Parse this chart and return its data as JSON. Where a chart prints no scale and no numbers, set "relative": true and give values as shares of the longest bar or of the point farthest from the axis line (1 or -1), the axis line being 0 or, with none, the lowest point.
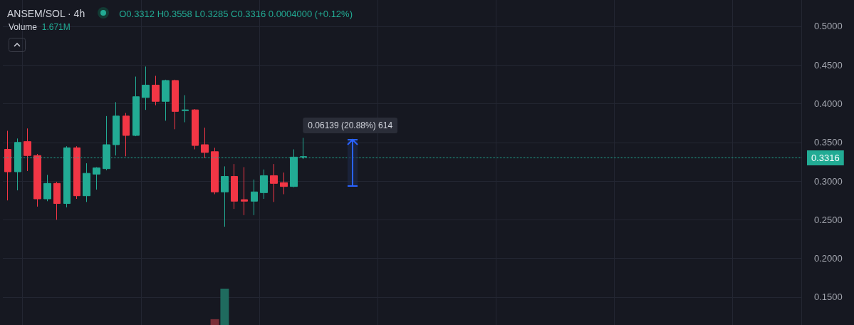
{
  "chart_data": [
    {
      "type": "candlestick",
      "title": "ANSEM/SOL · 4h",
      "subtitle": "O0.3312 H0.3558 L0.3285 C0.3316 0.0004000 (+0.12%)",
      "categories": [
        null,
        null,
        null,
        null,
        null,
        null,
        null,
        null,
        null,
        null,
        null,
        null,
        null,
        null,
        null,
        null,
        null,
        null,
        null,
        null,
        null,
        null,
        null,
        null,
        null,
        null,
        null,
        null,
        null,
        null,
        null,
        null,
        null,
        null,
        null,
        null,
        null,
        null,
        null,
        null,
        null,
        null,
        null,
        null,
        null,
        null,
        null,
        null,
        null,
        null,
        null,
        null,
        null,
        null,
        null,
        null,
        null,
        null,
        null,
        null,
        null,
        null,
        null,
        null,
        null,
        null,
        null,
        null,
        null,
        null,
        null,
        null,
        null,
        null,
        null,
        null,
        null,
        null,
        null,
        null,
        null
      ],
      "ohlc": [
        [
          0.341,
          0.365,
          0.275,
          0.312
        ],
        [
          0.312,
          0.355,
          0.288,
          0.35
        ],
        [
          0.351,
          0.368,
          0.313,
          0.333
        ],
        [
          0.333,
          0.335,
          0.267,
          0.277
        ],
        [
          0.277,
          0.308,
          0.274,
          0.297
        ],
        [
          0.297,
          0.299,
          0.25,
          0.271
        ],
        [
          0.271,
          0.345,
          0.266,
          0.343
        ],
        [
          0.343,
          0.345,
          0.277,
          0.281
        ],
        [
          0.281,
          0.323,
          0.273,
          0.31
        ],
        [
          0.309,
          0.318,
          0.289,
          0.317
        ],
        [
          0.316,
          0.384,
          0.314,
          0.347
        ],
        [
          0.347,
          0.402,
          0.333,
          0.384
        ],
        [
          0.384,
          0.388,
          0.332,
          0.359
        ],
        [
          0.359,
          0.435,
          0.358,
          0.409
        ],
        [
          0.408,
          0.448,
          0.392,
          0.424
        ],
        [
          0.424,
          0.436,
          0.398,
          0.403
        ],
        [
          0.403,
          0.431,
          0.378,
          0.43
        ],
        [
          0.43,
          0.431,
          0.367,
          0.39
        ],
        [
          0.391,
          0.411,
          0.376,
          0.392
        ],
        [
          0.392,
          0.393,
          0.341,
          0.346
        ],
        [
          0.347,
          0.369,
          0.33,
          0.337
        ],
        [
          0.338,
          0.343,
          0.283,
          0.286
        ],
        [
          0.286,
          0.319,
          0.241,
          0.306
        ],
        [
          0.306,
          0.322,
          0.264,
          0.274
        ],
        [
          0.276,
          0.318,
          0.256,
          0.274
        ],
        [
          0.274,
          0.302,
          0.256,
          0.286
        ],
        [
          0.285,
          0.315,
          0.277,
          0.307
        ],
        [
          0.307,
          0.322,
          0.273,
          0.297
        ],
        [
          0.298,
          0.311,
          0.283,
          0.293
        ],
        [
          0.293,
          0.341,
          0.292,
          0.331
        ],
        [
          0.3312,
          0.3558,
          0.3285,
          0.3316
        ],
        null,
        null,
        null,
        null,
        null,
        null,
        null,
        null,
        null,
        null,
        null,
        null,
        null,
        null,
        null,
        null,
        null,
        null,
        null,
        null,
        null,
        null,
        null,
        null,
        null,
        null,
        null,
        null,
        null,
        null,
        null,
        null,
        null,
        null,
        null,
        null,
        null,
        null,
        null,
        null,
        null,
        null,
        null,
        null,
        null,
        null,
        null,
        null,
        null,
        null
      ],
      "colors": [
        "#f23645",
        "#22ab94",
        "#f23645",
        "#f23645",
        "#22ab94",
        "#f23645",
        "#22ab94",
        "#f23645",
        "#22ab94",
        "#22ab94",
        "#22ab94",
        "#22ab94",
        "#f23645",
        "#22ab94",
        "#22ab94",
        "#f23645",
        "#22ab94",
        "#f23645",
        "#22ab94",
        "#f23645",
        "#f23645",
        "#f23645",
        "#22ab94",
        "#f23645",
        "#f23645",
        "#22ab94",
        "#22ab94",
        "#f23645",
        "#f23645",
        "#22ab94",
        "#22ab94",
        null,
        null,
        null,
        null,
        null,
        null,
        null,
        null,
        null,
        null,
        null,
        null,
        null,
        null,
        null,
        null,
        null,
        null,
        null,
        null,
        null,
        null,
        null,
        null,
        null,
        null,
        null,
        null,
        null,
        null,
        null,
        null,
        null,
        null,
        null,
        null,
        null,
        null,
        null,
        null,
        null,
        null,
        null,
        null,
        null,
        null,
        null,
        null,
        null,
        null
      ],
      "ylim": [
        0.114,
        0.534
      ],
      "yticks": [
        {
          "value": 0.15,
          "label": "0.1500"
        },
        {
          "value": 0.2,
          "label": "0.2000"
        },
        {
          "value": 0.25,
          "label": "0.2500"
        },
        {
          "value": 0.3,
          "label": "0.3000"
        },
        {
          "value": 0.35,
          "label": "0.3500"
        },
        {
          "value": 0.4,
          "label": "0.4000"
        },
        {
          "value": 0.45,
          "label": "0.4500"
        },
        {
          "value": 0.5,
          "label": "0.5000"
        }
      ],
      "ref_lines": [
        {
          "axis": "y",
          "value": 0.3316,
          "label": "0.3316",
          "color": "#22ab94",
          "line_style": "dotted"
        }
      ],
      "annotations": [
        "0.06139 (20.88%) 614"
      ],
      "grid": true,
      "tick_labels": "y"
    },
    {
      "type": "bar",
      "title": "Volume",
      "subtitle": "1.671M",
      "relative": true,
      "categories": [
        null,
        null,
        null,
        null,
        null,
        null,
        null,
        null,
        null,
        null,
        null,
        null,
        null,
        null,
        null,
        null,
        null,
        null,
        null,
        null,
        null,
        null,
        null,
        null,
        null,
        null,
        null,
        null,
        null,
        null,
        null,
        null,
        null,
        null,
        null,
        null,
        null,
        null,
        null,
        null,
        null,
        null,
        null,
        null,
        null,
        null,
        null,
        null,
        null,
        null,
        null,
        null,
        null,
        null,
        null,
        null,
        null,
        null,
        null,
        null,
        null,
        null,
        null,
        null,
        null,
        null,
        null,
        null,
        null,
        null,
        null,
        null,
        null,
        null,
        null,
        null,
        null,
        null,
        null,
        null,
        null
      ],
      "values": [
        null,
        null,
        null,
        null,
        null,
        null,
        null,
        null,
        null,
        null,
        null,
        null,
        null,
        null,
        null,
        null,
        null,
        null,
        null,
        null,
        null,
        0.16,
        1,
        null,
        null,
        null,
        null,
        null,
        null,
        null,
        null,
        null,
        null,
        null,
        null,
        null,
        null,
        null,
        null,
        null,
        null,
        null,
        null,
        null,
        null,
        null,
        null,
        null,
        null,
        null,
        null,
        null,
        null,
        null,
        null,
        null,
        null,
        null,
        null,
        null,
        null,
        null,
        null,
        null,
        null,
        null,
        null,
        null,
        null,
        null,
        null,
        null,
        null,
        null,
        null,
        null,
        null,
        null,
        null,
        null,
        null
      ],
      "colors": [
        null,
        null,
        null,
        null,
        null,
        null,
        null,
        null,
        null,
        null,
        null,
        null,
        null,
        null,
        null,
        null,
        null,
        null,
        null,
        null,
        null,
        "#7a2e37",
        "#1f6b5e",
        null,
        null,
        null,
        null,
        null,
        null,
        null,
        null,
        null,
        null,
        null,
        null,
        null,
        null,
        null,
        null,
        null,
        null,
        null,
        null,
        null,
        null,
        null,
        null,
        null,
        null,
        null,
        null,
        null,
        null,
        null,
        null,
        null,
        null,
        null,
        null,
        null,
        null,
        null,
        null,
        null,
        null,
        null,
        null,
        null,
        null,
        null,
        null,
        null,
        null,
        null,
        null,
        null,
        null,
        null,
        null,
        null,
        null
      ],
      "tick_labels": false
    }
  ]
}
